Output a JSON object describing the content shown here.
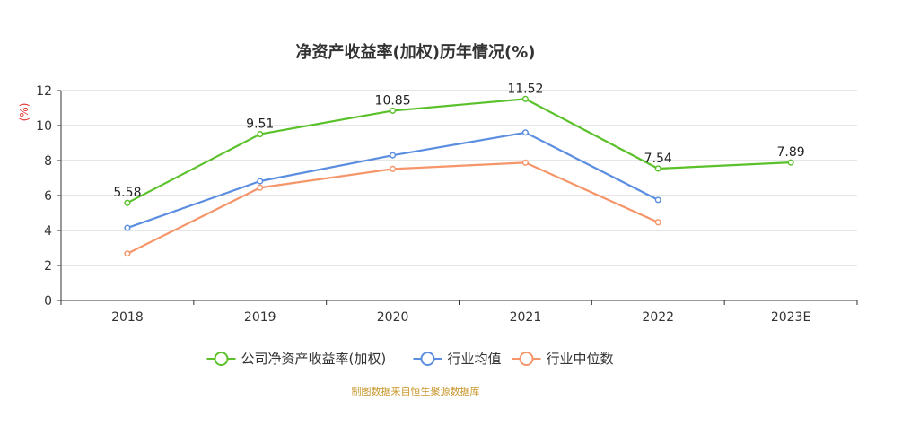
{
  "chart_data": {
    "type": "line",
    "title": "净资产收益率(加权)历年情况(%)",
    "ylabel": "(%)",
    "categories": [
      "2018",
      "2019",
      "2020",
      "2021",
      "2022",
      "2023E"
    ],
    "ylim": [
      0,
      12
    ],
    "yticks": [
      "0",
      "2",
      "4",
      "6",
      "8",
      "10",
      "12"
    ],
    "grid": true,
    "legend_position": "bottom",
    "series": [
      {
        "name": "公司净资产收益率(加权)",
        "color": "#5ac12a",
        "values": [
          5.58,
          9.51,
          10.85,
          11.52,
          7.54,
          7.89
        ],
        "labels": [
          "5.58",
          "9.51",
          "10.85",
          "11.52",
          "7.54",
          "7.89"
        ]
      },
      {
        "name": "行业均值",
        "color": "#5b8ee0",
        "values": [
          4.15,
          6.82,
          8.3,
          9.6,
          5.75,
          null
        ]
      },
      {
        "name": "行业中位数",
        "color": "#f5956a",
        "values": [
          2.68,
          6.45,
          7.52,
          7.88,
          4.47,
          null
        ]
      }
    ],
    "source": "制图数据来自恒生聚源数据库"
  }
}
